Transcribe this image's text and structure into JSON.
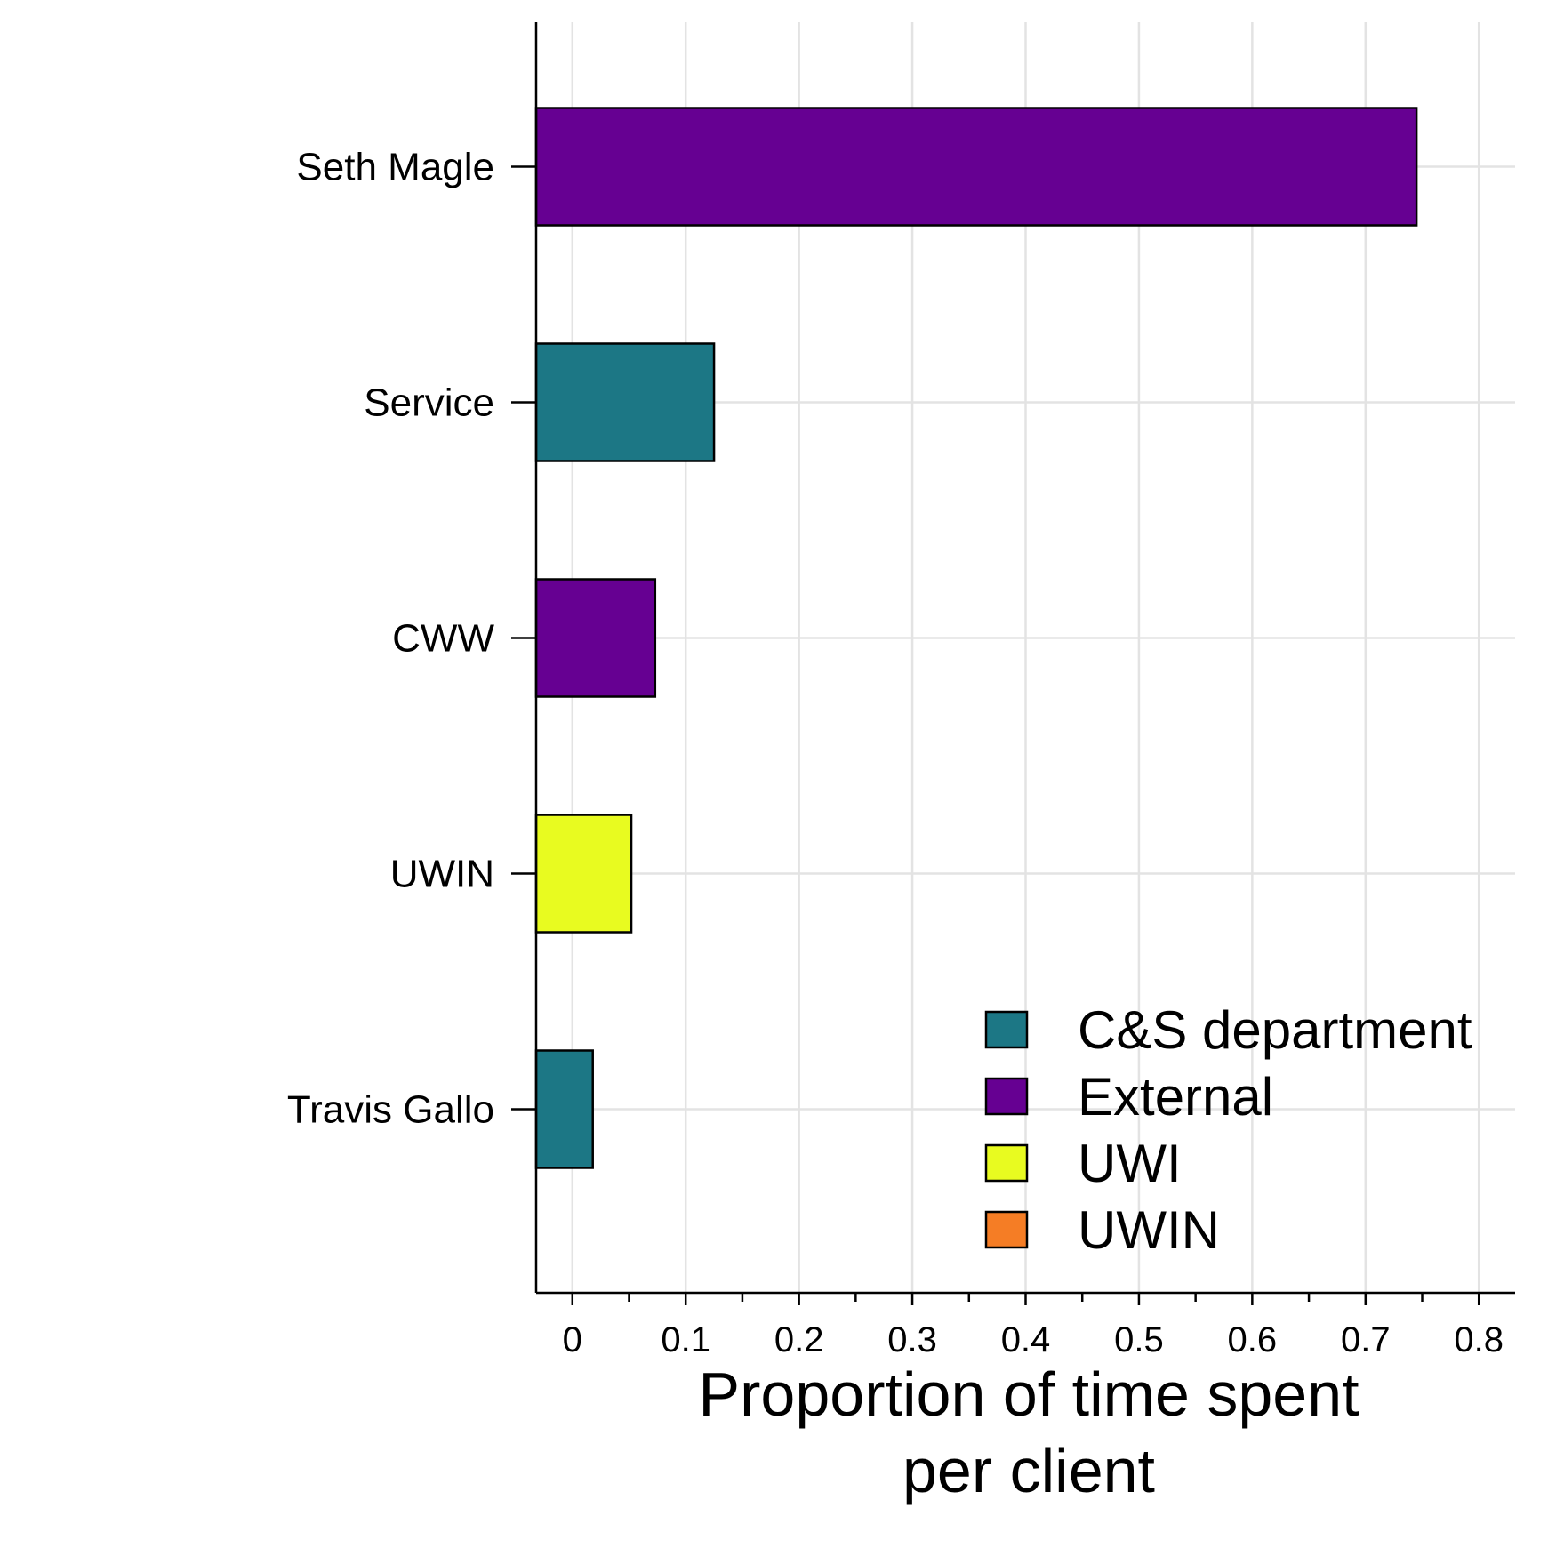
{
  "chart_data": {
    "type": "bar",
    "orientation": "horizontal",
    "categories": [
      "Seth Magle",
      "Service",
      "CWW",
      "UWIN",
      "Travis Gallo"
    ],
    "values": [
      0.745,
      0.125,
      0.073,
      0.052,
      0.018
    ],
    "groups": [
      "External",
      "C&S department",
      "External",
      "UWI",
      "C&S department"
    ],
    "xlabel": [
      "Proportion of time spent",
      "per client"
    ],
    "ylabel": "",
    "xlim": [
      -0.032,
      0.832
    ],
    "xticks": [
      0,
      0.1,
      0.2,
      0.3,
      0.4,
      0.5,
      0.6,
      0.7,
      0.8
    ],
    "xtick_labels": [
      "0",
      "0.1",
      "0.2",
      "0.3",
      "0.4",
      "0.5",
      "0.6",
      "0.7",
      "0.8"
    ],
    "grid": true,
    "legend": {
      "position": "bottom-right",
      "entries": [
        {
          "label": "C&S department",
          "color": "#1c7785"
        },
        {
          "label": "External",
          "color": "#660092"
        },
        {
          "label": "UWI",
          "color": "#e8fb20"
        },
        {
          "label": "UWIN",
          "color": "#f57d25"
        }
      ]
    },
    "colors": {
      "C&S department": "#1c7785",
      "External": "#660092",
      "UWI": "#e8fb20",
      "UWIN": "#f57d25",
      "grid": "#e3e3e3",
      "axis": "#000000"
    }
  }
}
